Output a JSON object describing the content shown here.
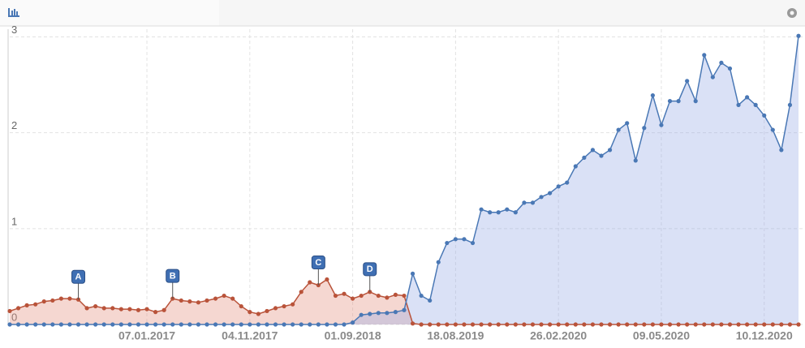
{
  "chart_data": {
    "type": "line",
    "categories": [
      null,
      null,
      null,
      null,
      null,
      null,
      null,
      null,
      null,
      null,
      null,
      null,
      null,
      null,
      null,
      null,
      "07.01.2017",
      null,
      null,
      null,
      null,
      null,
      null,
      null,
      null,
      null,
      null,
      null,
      "04.11.2017",
      null,
      null,
      null,
      null,
      null,
      null,
      null,
      null,
      null,
      null,
      null,
      "01.09.2018",
      null,
      null,
      null,
      null,
      null,
      null,
      null,
      null,
      null,
      null,
      null,
      "18.08.2019",
      null,
      null,
      null,
      null,
      null,
      null,
      null,
      null,
      null,
      null,
      null,
      "26.02.2020",
      null,
      null,
      null,
      null,
      null,
      null,
      null,
      null,
      null,
      null,
      null,
      "09.05.2020",
      null,
      null,
      null,
      null,
      null,
      null,
      null,
      null,
      null,
      null,
      null,
      "10.12.2020",
      null,
      null,
      null,
      null
    ],
    "series": [
      {
        "color": "#b9533a",
        "values": [
          0.14,
          0.17,
          0.2,
          0.21,
          0.24,
          0.25,
          0.27,
          0.27,
          0.26,
          0.17,
          0.19,
          0.17,
          0.17,
          0.16,
          0.16,
          0.15,
          0.16,
          0.13,
          0.15,
          0.27,
          0.25,
          0.24,
          0.23,
          0.25,
          0.27,
          0.3,
          0.27,
          0.19,
          0.13,
          0.11,
          0.14,
          0.17,
          0.19,
          0.21,
          0.34,
          0.44,
          0.41,
          0.47,
          0.3,
          0.32,
          0.27,
          0.3,
          0.34,
          0.3,
          0.28,
          0.31,
          0.3,
          0.01,
          0,
          0,
          0,
          0,
          0,
          0,
          0,
          0,
          0,
          0,
          0,
          0,
          0,
          0,
          0,
          0,
          0,
          0,
          0,
          0,
          0,
          0,
          0,
          0,
          0,
          0,
          0,
          0,
          0,
          0,
          0,
          0,
          0,
          0,
          0,
          0,
          0,
          0,
          0,
          0,
          0,
          0,
          0,
          0,
          0
        ]
      },
      {
        "color": "#4a78b5",
        "values": [
          0,
          0,
          0,
          0,
          0,
          0,
          0,
          0,
          0,
          0,
          0,
          0,
          0,
          0,
          0,
          0,
          0,
          0,
          0,
          0,
          0,
          0,
          0,
          0,
          0,
          0,
          0,
          0,
          0,
          0,
          0,
          0,
          0,
          0,
          0,
          0,
          0,
          0,
          0,
          0,
          0.02,
          0.1,
          0.11,
          0.12,
          0.12,
          0.13,
          0.15,
          0.53,
          0.3,
          0.25,
          0.65,
          0.85,
          0.89,
          0.89,
          0.85,
          1.2,
          1.17,
          1.17,
          1.2,
          1.17,
          1.27,
          1.27,
          1.33,
          1.37,
          1.44,
          1.48,
          1.65,
          1.74,
          1.82,
          1.76,
          1.82,
          2.03,
          2.1,
          1.71,
          2.05,
          2.39,
          2.08,
          2.33,
          2.33,
          2.54,
          2.33,
          2.81,
          2.58,
          2.73,
          2.67,
          2.29,
          2.37,
          2.29,
          2.18,
          2.03,
          1.82,
          2.29,
          3.01
        ]
      }
    ],
    "annotations": [
      {
        "text": "A",
        "at": 8
      },
      {
        "text": "B",
        "at": 19
      },
      {
        "text": "C",
        "at": 36
      },
      {
        "text": "D",
        "at": 42
      }
    ],
    "ylim": [
      0,
      3.08
    ],
    "yticks": [
      0,
      1,
      2,
      3
    ],
    "grid": true
  }
}
